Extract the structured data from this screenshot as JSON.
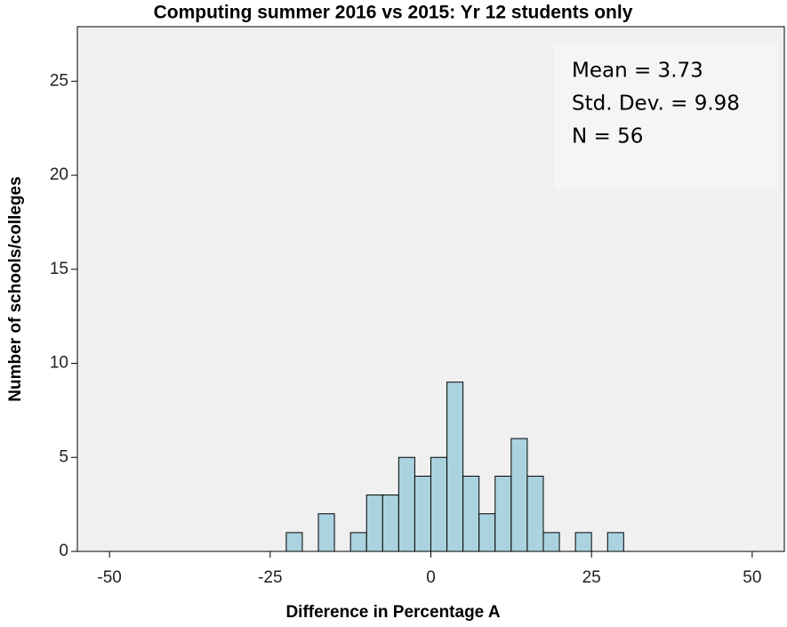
{
  "chart_data": {
    "type": "histogram",
    "title": "Computing summer 2016 vs 2015: Yr 12 students only",
    "x_label": "Difference in Percentage A",
    "y_label": "Number of schools/colleges",
    "bins": [
      -22.5,
      -20,
      -17.5,
      -15,
      -12.5,
      -10,
      -7.5,
      -5,
      -2.5,
      0,
      2.5,
      5,
      7.5,
      10,
      12.5,
      15,
      17.5,
      20,
      22.5,
      25,
      27.5,
      30
    ],
    "values": [
      1,
      0,
      2,
      0,
      1,
      3,
      3,
      5,
      4,
      5,
      9,
      4,
      2,
      4,
      6,
      4,
      1,
      0,
      1,
      0,
      1
    ],
    "color": "#aad3df",
    "xlim": [
      -55,
      55
    ],
    "ylim": [
      0,
      27.9
    ],
    "xticks": [
      -50,
      -25,
      0,
      25,
      50
    ],
    "yticks": [
      0,
      5,
      10,
      15,
      20,
      25
    ],
    "annotations": [
      "Mean = 3.73",
      "Std. Dev. = 9.98",
      "N = 56"
    ]
  }
}
